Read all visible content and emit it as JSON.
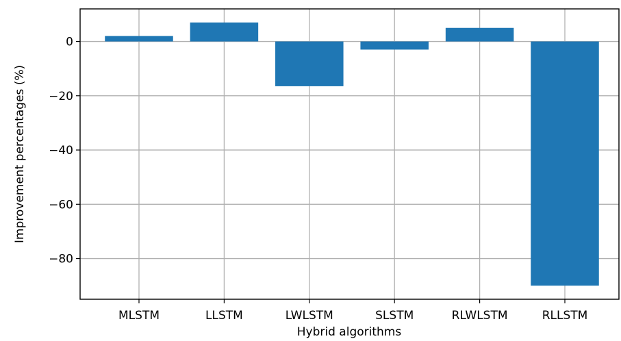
{
  "chart_data": {
    "type": "bar",
    "title": "",
    "xlabel": "Hybrid algorithms",
    "ylabel": "Improvement percentages (%)",
    "categories": [
      "MLSTM",
      "LLSTM",
      "LWLSTM",
      "SLSTM",
      "RLWLSTM",
      "RLLSTM"
    ],
    "values": [
      2,
      7,
      -16.5,
      -3,
      5,
      -90
    ],
    "ylim": [
      -95,
      12
    ],
    "yticks": [
      0,
      -20,
      -40,
      -60,
      -80
    ],
    "ytick_labels": [
      "0",
      "−20",
      "−40",
      "−60",
      "−80"
    ],
    "grid": true,
    "bar_color": "#1f77b4"
  }
}
